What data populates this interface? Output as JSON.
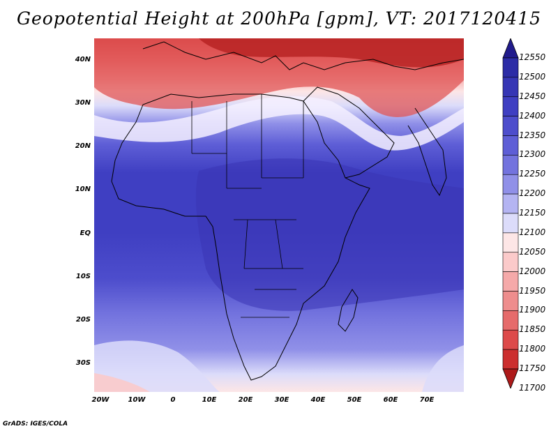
{
  "title": "Geopotential Height at 200hPa [gpm], VT: 2017120415",
  "credit": "GrADS: IGES/COLA",
  "lat_labels": [
    "40N",
    "30N",
    "20N",
    "10N",
    "EQ",
    "10S",
    "20S",
    "30S"
  ],
  "lon_labels": [
    "20W",
    "10W",
    "0",
    "10E",
    "20E",
    "30E",
    "40E",
    "50E",
    "60E",
    "70E"
  ],
  "legend": {
    "levels": [
      "12550",
      "12500",
      "12450",
      "12400",
      "12350",
      "12300",
      "12250",
      "12200",
      "12150",
      "12100",
      "12050",
      "12000",
      "11950",
      "11900",
      "11850",
      "11800",
      "11750",
      "11700"
    ],
    "colors": [
      "#211b8c",
      "#2c2ca6",
      "#3636b5",
      "#3f3fc2",
      "#4d4dcc",
      "#5e5ed6",
      "#7373de",
      "#9090e8",
      "#b4b4f2",
      "#dcdcfa",
      "#fde6e6",
      "#fbcaca",
      "#f5a9a9",
      "#ee8d8d",
      "#e66b6b",
      "#dd4a4a",
      "#cc2f2f",
      "#ad1a1a"
    ]
  }
}
